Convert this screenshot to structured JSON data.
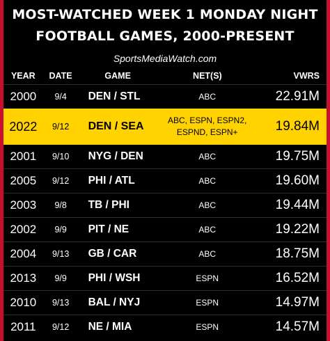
{
  "title_line1": "MOST-WATCHED WEEK 1 MONDAY NIGHT",
  "title_line2": "FOOTBALL GAMES, 2000-PRESENT",
  "source": "SportsMediaWatch.com",
  "columns": {
    "year": "YEAR",
    "date": "DATE",
    "game": "GAME",
    "networks": "NET(S)",
    "viewers": "VWRS"
  },
  "rows": [
    {
      "year": "2000",
      "date": "9/4",
      "game": "DEN / STL",
      "networks": "ABC",
      "viewers": "22.91M"
    },
    {
      "year": "2022",
      "date": "9/12",
      "game": "DEN / SEA",
      "networks_line1": "ABC, ESPN, ESPN2,",
      "networks_line2": "ESPND, ESPN+",
      "viewers": "19.84M"
    },
    {
      "year": "2001",
      "date": "9/10",
      "game": "NYG / DEN",
      "networks": "ABC",
      "viewers": "19.75M"
    },
    {
      "year": "2005",
      "date": "9/12",
      "game": "PHI / ATL",
      "networks": "ABC",
      "viewers": "19.60M"
    },
    {
      "year": "2003",
      "date": "9/8",
      "game": "TB / PHI",
      "networks": "ABC",
      "viewers": "19.44M"
    },
    {
      "year": "2002",
      "date": "9/9",
      "game": "PIT / NE",
      "networks": "ABC",
      "viewers": "19.22M"
    },
    {
      "year": "2004",
      "date": "9/13",
      "game": "GB / CAR",
      "networks": "ABC",
      "viewers": "18.75M"
    },
    {
      "year": "2013",
      "date": "9/9",
      "game": "PHI / WSH",
      "networks": "ESPN",
      "viewers": "16.52M"
    },
    {
      "year": "2010",
      "date": "9/13",
      "game": "BAL / NYJ",
      "networks": "ESPN",
      "viewers": "14.97M"
    },
    {
      "year": "2011",
      "date": "9/12",
      "game": "NE / MIA",
      "networks": "ESPN",
      "viewers": "14.57M"
    }
  ],
  "colors": {
    "border": "#c8102e",
    "background": "#000000",
    "highlight": "#ffd200",
    "text": "#ffffff"
  }
}
